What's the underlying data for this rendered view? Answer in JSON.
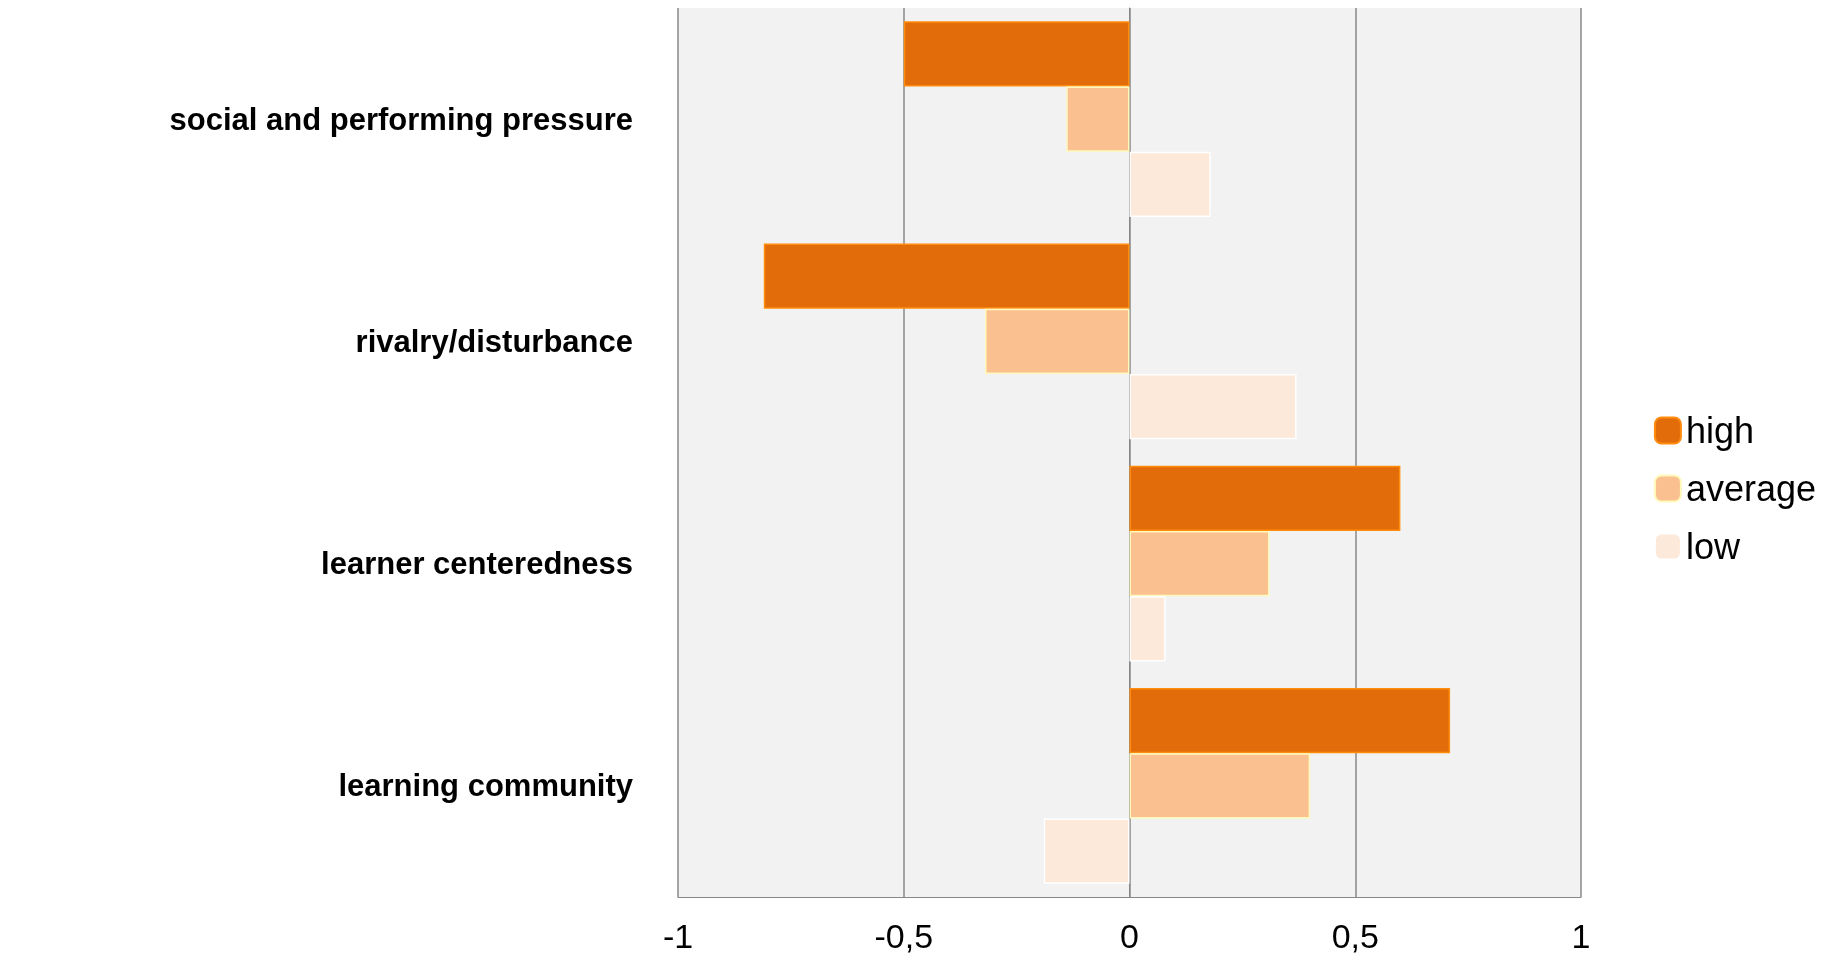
{
  "chart_data": {
    "type": "bar",
    "orientation": "horizontal",
    "categories": [
      "social and performing pressure",
      "rivalry/disturbance",
      "learner centeredness",
      "learning community"
    ],
    "series": [
      {
        "name": "high",
        "color": "#e36c0a",
        "values": [
          -0.5,
          -0.81,
          0.6,
          0.71
        ]
      },
      {
        "name": "average",
        "color": "#fac090",
        "values": [
          -0.14,
          -0.32,
          0.31,
          0.4
        ]
      },
      {
        "name": "low",
        "color": "#fde9d9",
        "values": [
          0.18,
          0.37,
          0.08,
          -0.19
        ]
      }
    ],
    "xlim": [
      -1,
      1
    ],
    "xticks": [
      -1,
      {
        "value": -0.5,
        "label": "-0,5"
      },
      0,
      {
        "value": 0.5,
        "label": "0,5"
      },
      1
    ],
    "grid": "x",
    "legend": "right"
  }
}
